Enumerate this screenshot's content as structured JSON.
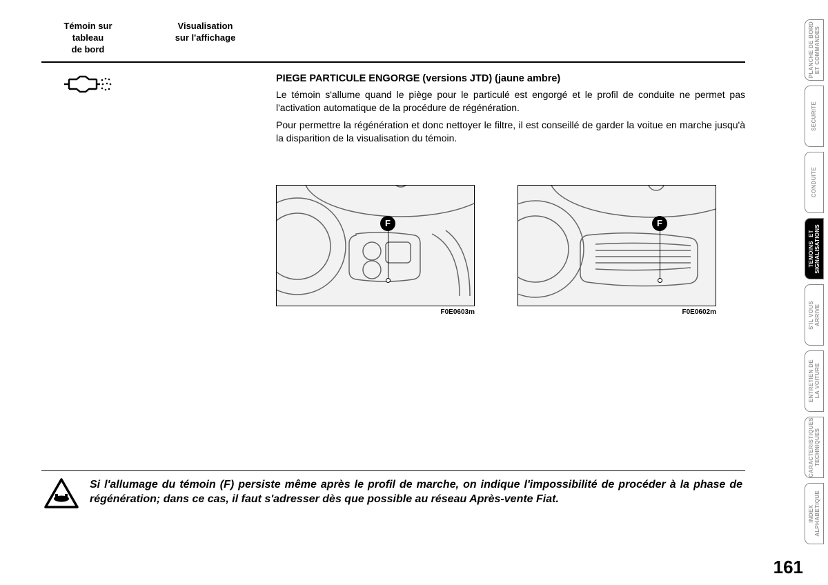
{
  "header": {
    "col1": "Témoin sur\ntableau\nde bord",
    "col2": "Visualisation\nsur l'affichage"
  },
  "section": {
    "title": "PIEGE PARTICULE ENGORGE (versions JTD) (jaune ambre)",
    "p1": "Le témoin s'allume quand le piège pour le particulé est engorgé et le profil de conduite ne permet pas l'activation automatique de la procédure de régénération.",
    "p2": "Pour permettre la régénération et donc nettoyer le filtre, il est conseillé de garder la voitue en marche jusqu'à la disparition de la visualisation du témoin."
  },
  "figures": {
    "marker": "F",
    "cap1": "F0E0603m",
    "cap2": "F0E0602m"
  },
  "warning": {
    "text": "Si l'allumage du témoin (F) persiste même après le profil de marche, on indique l'impossibilité de procéder à la phase de régénération; dans ce cas, il faut s'adresser dès que possible au réseau Après-vente Fiat."
  },
  "pageNumber": "161",
  "tabs": [
    {
      "label": "PLANCHE DE BORD\nET COMMANDES",
      "active": false
    },
    {
      "label": "SECURITE",
      "active": false
    },
    {
      "label": "CONDUITE",
      "active": false
    },
    {
      "label": "TEMOINS  ET\nSIGNALISATIONS",
      "active": true
    },
    {
      "label": "S'IL VOUS\nARRIVE",
      "active": false
    },
    {
      "label": "ENTRETIEN DE\nLA VOITURE",
      "active": false
    },
    {
      "label": "CARACTERISTIQUES\nTECHNIQUES",
      "active": false
    },
    {
      "label": "INDEX\nALPHABETIQUE",
      "active": false
    }
  ]
}
